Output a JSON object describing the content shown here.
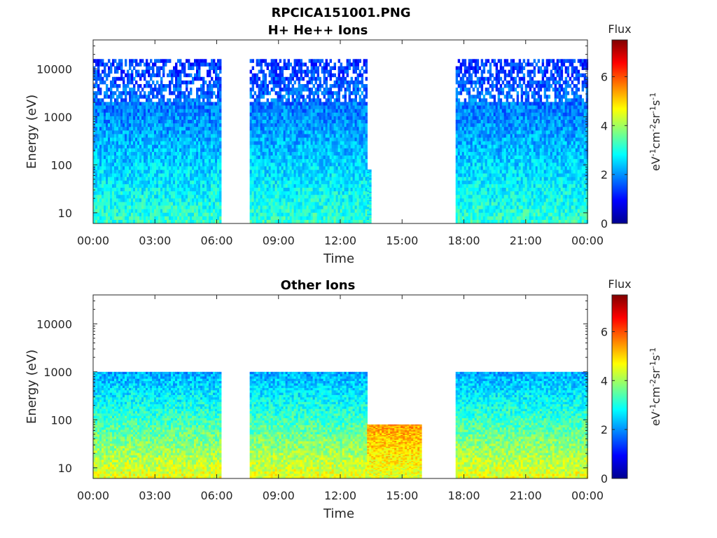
{
  "figure_title": "RPCICA151001.PNG",
  "colormap": [
    "#00008f",
    "#0000ff",
    "#0080ff",
    "#00ffff",
    "#80ff80",
    "#ffff00",
    "#ff8000",
    "#ff0000",
    "#800000"
  ],
  "chart_data": [
    {
      "type": "heatmap",
      "title": "H+ He++ Ions",
      "xlabel": "Time",
      "ylabel": "Energy (eV)",
      "y_scale": "log",
      "ylim": [
        6,
        40000
      ],
      "xlim": [
        "00:00",
        "24:00"
      ],
      "x_ticks": [
        "00:00",
        "03:00",
        "06:00",
        "09:00",
        "12:00",
        "15:00",
        "18:00",
        "21:00",
        "00:00"
      ],
      "y_ticks": [
        10,
        100,
        1000,
        10000
      ],
      "y_tick_labels": [
        "10",
        "100",
        "1000",
        "10000"
      ],
      "colorbar": {
        "title": "Flux",
        "unit": "eV-1cm-2sr-1s-1",
        "range": [
          0,
          7.5
        ],
        "ticks": [
          0,
          2,
          4,
          6
        ]
      },
      "data_intervals": [
        {
          "start_hour": 0.0,
          "end_hour": 6.15,
          "flux_low": 3.2,
          "flux_high": 1.3,
          "emax": 16000
        },
        {
          "start_hour": 7.6,
          "end_hour": 13.3,
          "flux_low": 3.2,
          "flux_high": 1.3,
          "emax": 16000
        },
        {
          "start_hour": 13.3,
          "end_hour": 13.5,
          "flux_low": 3.0,
          "flux_high": 2.6,
          "emax": 80
        },
        {
          "start_hour": 17.6,
          "end_hour": 24.0,
          "flux_low": 3.2,
          "flux_high": 1.3,
          "emax": 16000
        }
      ]
    },
    {
      "type": "heatmap",
      "title": "Other Ions",
      "xlabel": "Time",
      "ylabel": "Energy (eV)",
      "y_scale": "log",
      "ylim": [
        6,
        40000
      ],
      "xlim": [
        "00:00",
        "24:00"
      ],
      "x_ticks": [
        "00:00",
        "03:00",
        "06:00",
        "09:00",
        "12:00",
        "15:00",
        "18:00",
        "21:00",
        "00:00"
      ],
      "y_ticks": [
        10,
        100,
        1000,
        10000
      ],
      "y_tick_labels": [
        "10",
        "100",
        "1000",
        "10000"
      ],
      "colorbar": {
        "title": "Flux",
        "unit": "eV-1cm-2sr-1s-1",
        "range": [
          0,
          7.5
        ],
        "ticks": [
          0,
          2,
          4,
          6
        ]
      },
      "data_intervals": [
        {
          "start_hour": 0.0,
          "end_hour": 6.15,
          "flux_low": 4.6,
          "flux_high": 2.2,
          "emax": 1000
        },
        {
          "start_hour": 7.6,
          "end_hour": 13.3,
          "flux_low": 4.6,
          "flux_high": 2.2,
          "emax": 1000
        },
        {
          "start_hour": 13.3,
          "end_hour": 15.9,
          "flux_low": 4.4,
          "flux_high": 5.4,
          "emax": 80
        },
        {
          "start_hour": 17.6,
          "end_hour": 24.0,
          "flux_low": 4.6,
          "flux_high": 2.2,
          "emax": 1000
        }
      ]
    }
  ]
}
